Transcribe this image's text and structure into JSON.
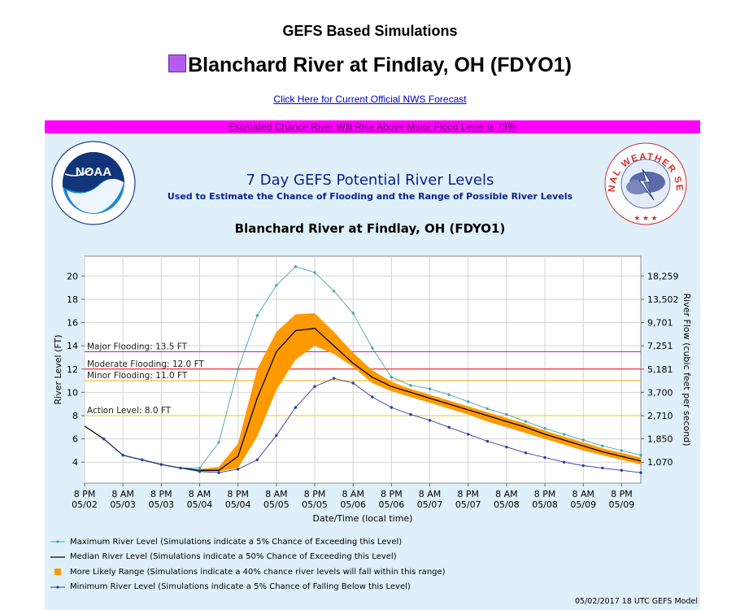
{
  "header": {
    "title": "GEFS Based Simulations",
    "gauge_name": "Blanchard River at Findlay, OH (FDYO1)",
    "forecast_link": "Click Here for Current Official NWS Forecast",
    "chance_banner": "Estimated Chance River Will Rise Above Major Flood Level is 73%"
  },
  "logos": {
    "left_text": "NOAA",
    "right_text": "NATIONAL WEATHER SERVICE"
  },
  "colors": {
    "major": "#cc00cc",
    "moderate": "#ff0000",
    "minor": "#ffaa00",
    "action": "#e6d200",
    "band": "#ff9900",
    "max_line": "#44a8a8",
    "min_line": "#2a3fa0",
    "median": "#000000",
    "panel": "#dff0fa",
    "title_blue": "#0b1f8f"
  },
  "chart_data": {
    "type": "line",
    "title": "7 Day GEFS Potential River Levels",
    "subtitle": "Used to Estimate the Chance of Flooding and the Range of Possible River Levels",
    "gauge_label": "Blanchard River at Findlay, OH (FDYO1)",
    "xlabel": "Date/Time (local time)",
    "ylabel": "River Level (FT)",
    "y2label": "River Flow (cubic feet per second)",
    "ylim": [
      2.2,
      21.7
    ],
    "y_ticks": [
      4,
      6,
      8,
      10,
      12,
      14,
      16,
      18,
      20
    ],
    "y2_ticks": [
      {
        "stage": 4.0,
        "label": "1,070"
      },
      {
        "stage": 6.0,
        "label": "1,850"
      },
      {
        "stage": 8.0,
        "label": "2,710"
      },
      {
        "stage": 10.0,
        "label": "3,700"
      },
      {
        "stage": 12.0,
        "label": "5,181"
      },
      {
        "stage": 14.0,
        "label": "7,251"
      },
      {
        "stage": 16.0,
        "label": "9,701"
      },
      {
        "stage": 18.0,
        "label": "13,502"
      },
      {
        "stage": 20.0,
        "label": "18,259"
      }
    ],
    "x_ticks": [
      {
        "t": 0,
        "time": "8 PM",
        "date": "05/02"
      },
      {
        "t": 12,
        "time": "8 AM",
        "date": "05/03"
      },
      {
        "t": 24,
        "time": "8 PM",
        "date": "05/03"
      },
      {
        "t": 36,
        "time": "8 AM",
        "date": "05/04"
      },
      {
        "t": 48,
        "time": "8 PM",
        "date": "05/04"
      },
      {
        "t": 60,
        "time": "8 AM",
        "date": "05/05"
      },
      {
        "t": 72,
        "time": "8 PM",
        "date": "05/05"
      },
      {
        "t": 84,
        "time": "8 AM",
        "date": "05/06"
      },
      {
        "t": 96,
        "time": "8 PM",
        "date": "05/06"
      },
      {
        "t": 108,
        "time": "8 AM",
        "date": "05/07"
      },
      {
        "t": 120,
        "time": "8 PM",
        "date": "05/07"
      },
      {
        "t": 132,
        "time": "8 AM",
        "date": "05/08"
      },
      {
        "t": 144,
        "time": "8 PM",
        "date": "05/08"
      },
      {
        "t": 156,
        "time": "8 AM",
        "date": "05/09"
      },
      {
        "t": 168,
        "time": "8 PM",
        "date": "05/09"
      }
    ],
    "xlim": [
      0,
      174
    ],
    "thresholds": [
      {
        "name": "Major Flooding",
        "label": "Major Flooding: 13.5 FT",
        "value": 13.5,
        "color": "#cc00cc"
      },
      {
        "name": "Moderate Flooding",
        "label": "Moderate Flooding: 12.0 FT",
        "value": 12.0,
        "color": "#ff0000"
      },
      {
        "name": "Minor Flooding",
        "label": "Minor Flooding: 11.0 FT",
        "value": 11.0,
        "color": "#ffaa00"
      },
      {
        "name": "Action Level",
        "label": "Action Level: 8.0 FT",
        "value": 8.0,
        "color": "#e6d200"
      }
    ],
    "observed": {
      "t": [
        0,
        6
      ],
      "values": [
        7.1,
        6.0
      ]
    },
    "series": [
      {
        "name": "Maximum River Level",
        "color": "#44a8a8",
        "t": [
          6,
          12,
          18,
          24,
          30,
          36,
          42,
          48,
          54,
          60,
          66,
          72,
          78,
          84,
          90,
          96,
          102,
          108,
          114,
          120,
          126,
          132,
          138,
          144,
          150,
          156,
          162,
          168,
          174
        ],
        "values": [
          6.0,
          4.6,
          4.2,
          3.8,
          3.5,
          3.5,
          5.7,
          12.0,
          16.6,
          19.2,
          20.8,
          20.3,
          18.7,
          16.8,
          13.8,
          11.3,
          10.6,
          10.3,
          9.8,
          9.2,
          8.6,
          8.1,
          7.5,
          6.9,
          6.4,
          5.9,
          5.4,
          5.0,
          4.6
        ]
      },
      {
        "name": "Median River Level",
        "color": "#000000",
        "t": [
          6,
          12,
          18,
          24,
          30,
          36,
          42,
          48,
          54,
          60,
          66,
          72,
          78,
          84,
          90,
          96,
          102,
          108,
          114,
          120,
          126,
          132,
          138,
          144,
          150,
          156,
          162,
          168,
          174
        ],
        "values": [
          6.0,
          4.6,
          4.2,
          3.8,
          3.5,
          3.3,
          3.3,
          4.5,
          9.5,
          13.5,
          15.3,
          15.5,
          14.0,
          12.5,
          11.3,
          10.5,
          10.0,
          9.5,
          9.0,
          8.5,
          8.0,
          7.5,
          7.0,
          6.4,
          5.9,
          5.4,
          4.9,
          4.5,
          4.1
        ]
      },
      {
        "name": "Minimum River Level",
        "color": "#2a3fa0",
        "t": [
          6,
          12,
          18,
          24,
          30,
          36,
          42,
          48,
          54,
          60,
          66,
          72,
          78,
          84,
          90,
          96,
          102,
          108,
          114,
          120,
          126,
          132,
          138,
          144,
          150,
          156,
          162,
          168,
          174
        ],
        "values": [
          6.0,
          4.6,
          4.2,
          3.8,
          3.5,
          3.2,
          3.1,
          3.4,
          4.2,
          6.3,
          8.7,
          10.5,
          11.2,
          10.8,
          9.6,
          8.7,
          8.1,
          7.6,
          7.0,
          6.4,
          5.8,
          5.3,
          4.8,
          4.4,
          4.0,
          3.7,
          3.5,
          3.3,
          3.1
        ]
      }
    ],
    "likely_range": {
      "name": "More Likely Range",
      "color": "#ff9900",
      "t": [
        36,
        42,
        48,
        54,
        60,
        66,
        72,
        78,
        84,
        90,
        96,
        102,
        108,
        114,
        120,
        126,
        132,
        138,
        144,
        150,
        156,
        162,
        168,
        174
      ],
      "upper": [
        3.4,
        3.6,
        5.6,
        12.0,
        15.2,
        16.7,
        16.8,
        15.2,
        13.4,
        11.9,
        10.9,
        10.3,
        9.8,
        9.3,
        8.8,
        8.3,
        7.8,
        7.3,
        6.7,
        6.2,
        5.7,
        5.2,
        4.8,
        4.4
      ],
      "lower": [
        3.2,
        3.2,
        3.5,
        6.2,
        10.2,
        12.8,
        14.0,
        13.3,
        12.2,
        10.8,
        10.1,
        9.6,
        9.1,
        8.6,
        8.1,
        7.5,
        7.0,
        6.5,
        6.0,
        5.5,
        5.0,
        4.6,
        4.2,
        3.8
      ]
    },
    "legend": [
      {
        "key": "max",
        "label": "Maximum River Level (Simulations indicate a 5% Chance of Exceeding this Level)"
      },
      {
        "key": "median",
        "label": "Median River Level (Simulations indicate a 50% Chance of Exceeding this Level)"
      },
      {
        "key": "band",
        "label": "More Likely Range (Simulations indicate a 40% chance river levels will fall within this range)"
      },
      {
        "key": "min",
        "label": "Minimum River Level (Simulations indicate a 5% Chance of Falling Below this Level)"
      }
    ],
    "model_note": "05/02/2017 18 UTC GEFS Model"
  }
}
